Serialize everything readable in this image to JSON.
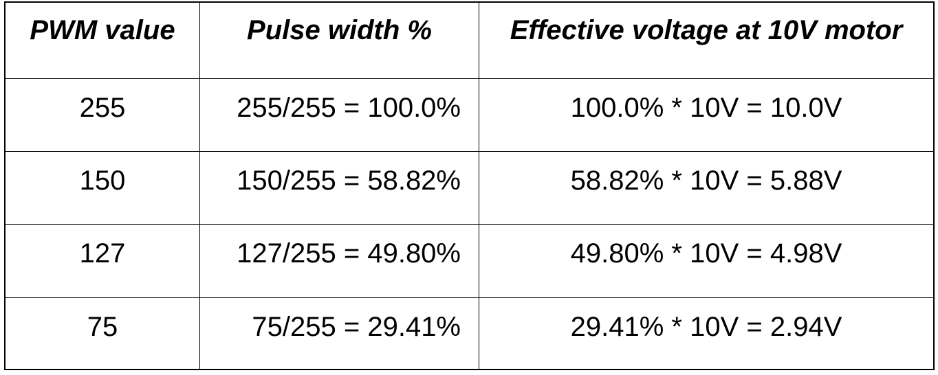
{
  "table": {
    "headers": [
      "PWM value",
      "Pulse width %",
      "Effective voltage at 10V motor"
    ],
    "rows": [
      [
        "255",
        "255/255 = 100.0%",
        "100.0% * 10V = 10.0V"
      ],
      [
        "150",
        "150/255 = 58.82%",
        "58.82% * 10V = 5.88V"
      ],
      [
        "127",
        "127/255 = 49.80%",
        "49.80% * 10V = 4.98V"
      ],
      [
        "75",
        "75/255 = 29.41%",
        "29.41% * 10V = 2.94V"
      ]
    ]
  }
}
